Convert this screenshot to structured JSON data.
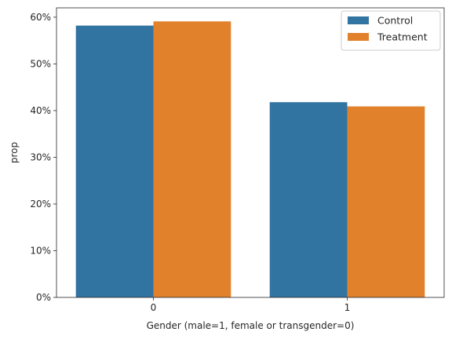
{
  "chart_data": {
    "type": "bar",
    "title": "",
    "xlabel": "Gender (male=1, female or transgender=0)",
    "ylabel": "prop",
    "categories": [
      "0",
      "1"
    ],
    "series": [
      {
        "name": "Control",
        "values": [
          0.582,
          0.418
        ],
        "color": "#3274a1"
      },
      {
        "name": "Treatment",
        "values": [
          0.591,
          0.409
        ],
        "color": "#e1812c"
      }
    ],
    "ylim": [
      0,
      0.62
    ],
    "yticks": [
      0,
      0.1,
      0.2,
      0.3,
      0.4,
      0.5,
      0.6
    ],
    "ytick_labels": [
      "0%",
      "10%",
      "20%",
      "30%",
      "40%",
      "50%",
      "60%"
    ],
    "grid": false,
    "legend_position": "top-right"
  }
}
